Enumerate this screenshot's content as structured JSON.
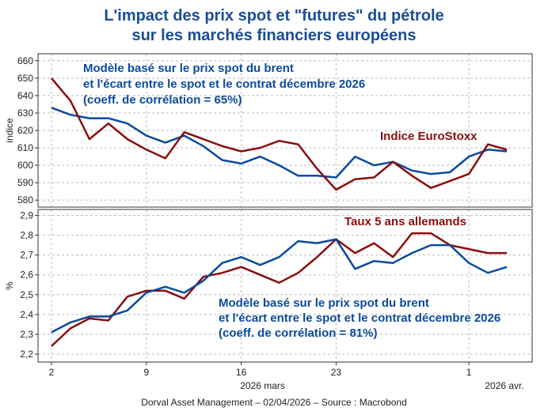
{
  "title": [
    "L'impact des prix spot et \"futures\" du pétrole",
    "sur les marchés financiers européens"
  ],
  "source": "Dorval Asset Management – 02/04/2026  –   Source : Macrobond",
  "chart_data": [
    {
      "type": "line",
      "y_label": "indice",
      "ylim": [
        576,
        664
      ],
      "yticks": [
        580,
        590,
        600,
        610,
        620,
        630,
        640,
        650,
        660
      ],
      "grid": true,
      "series": [
        {
          "name": [
            "Modèle basé sur le prix spot du brent",
            "et l'écart entre le spot et le contrat décembre 2026",
            "(coeff. de corrélation = 65%)"
          ],
          "color": "#0b4a9c",
          "values": [
            633,
            629,
            627,
            627,
            624,
            617,
            613,
            617,
            611,
            603,
            601,
            605,
            600,
            594,
            594,
            593,
            605,
            600,
            602,
            597,
            595,
            596,
            605,
            609,
            608
          ]
        },
        {
          "name": "Indice EuroStoxx",
          "color": "#8b0d0d",
          "values": [
            650,
            637,
            615,
            624,
            615,
            609,
            604,
            619,
            615,
            611,
            608,
            610,
            614,
            612,
            598,
            586,
            592,
            593,
            602,
            594,
            587,
            591,
            595,
            612,
            609
          ]
        }
      ]
    },
    {
      "type": "line",
      "y_label": "%",
      "ylim": [
        2.16,
        2.93
      ],
      "grid": true,
      "yticks": [
        {
          "value": 2.2,
          "label": "2,2"
        },
        {
          "value": 2.3,
          "label": "2,3"
        },
        {
          "value": 2.4,
          "label": "2,4"
        },
        {
          "value": 2.5,
          "label": "2,5"
        },
        {
          "value": 2.6,
          "label": "2,6"
        },
        {
          "value": 2.7,
          "label": "2,7"
        },
        {
          "value": 2.8,
          "label": "2,8"
        },
        {
          "value": 2.9,
          "label": "2,9"
        }
      ],
      "categories": [
        "2",
        null,
        null,
        null,
        null,
        "9",
        null,
        null,
        null,
        null,
        "16",
        null,
        null,
        null,
        null,
        "23",
        null,
        null,
        null,
        null,
        null,
        null,
        "1",
        null,
        null
      ],
      "months": [
        "2026 mars",
        "2026 avr."
      ],
      "series": [
        {
          "name": "Taux 5 ans allemands",
          "color": "#8b0d0d",
          "values": [
            2.24,
            2.33,
            2.38,
            2.37,
            2.49,
            2.52,
            2.52,
            2.48,
            2.59,
            2.61,
            2.64,
            2.6,
            2.56,
            2.61,
            2.69,
            2.78,
            2.71,
            2.76,
            2.69,
            2.81,
            2.81,
            2.75,
            2.73,
            2.71,
            2.71
          ]
        },
        {
          "name": [
            "Modèle basé sur le prix spot du brent",
            "et l'écart entre le spot et le contrat décembre 2026",
            "(coeff. de corrélation = 81%)"
          ],
          "color": "#0b4a9c",
          "values": [
            2.31,
            2.36,
            2.39,
            2.39,
            2.42,
            2.51,
            2.54,
            2.51,
            2.57,
            2.66,
            2.69,
            2.65,
            2.69,
            2.77,
            2.76,
            2.78,
            2.63,
            2.67,
            2.66,
            2.71,
            2.75,
            2.75,
            2.66,
            2.61,
            2.64
          ]
        }
      ]
    }
  ]
}
